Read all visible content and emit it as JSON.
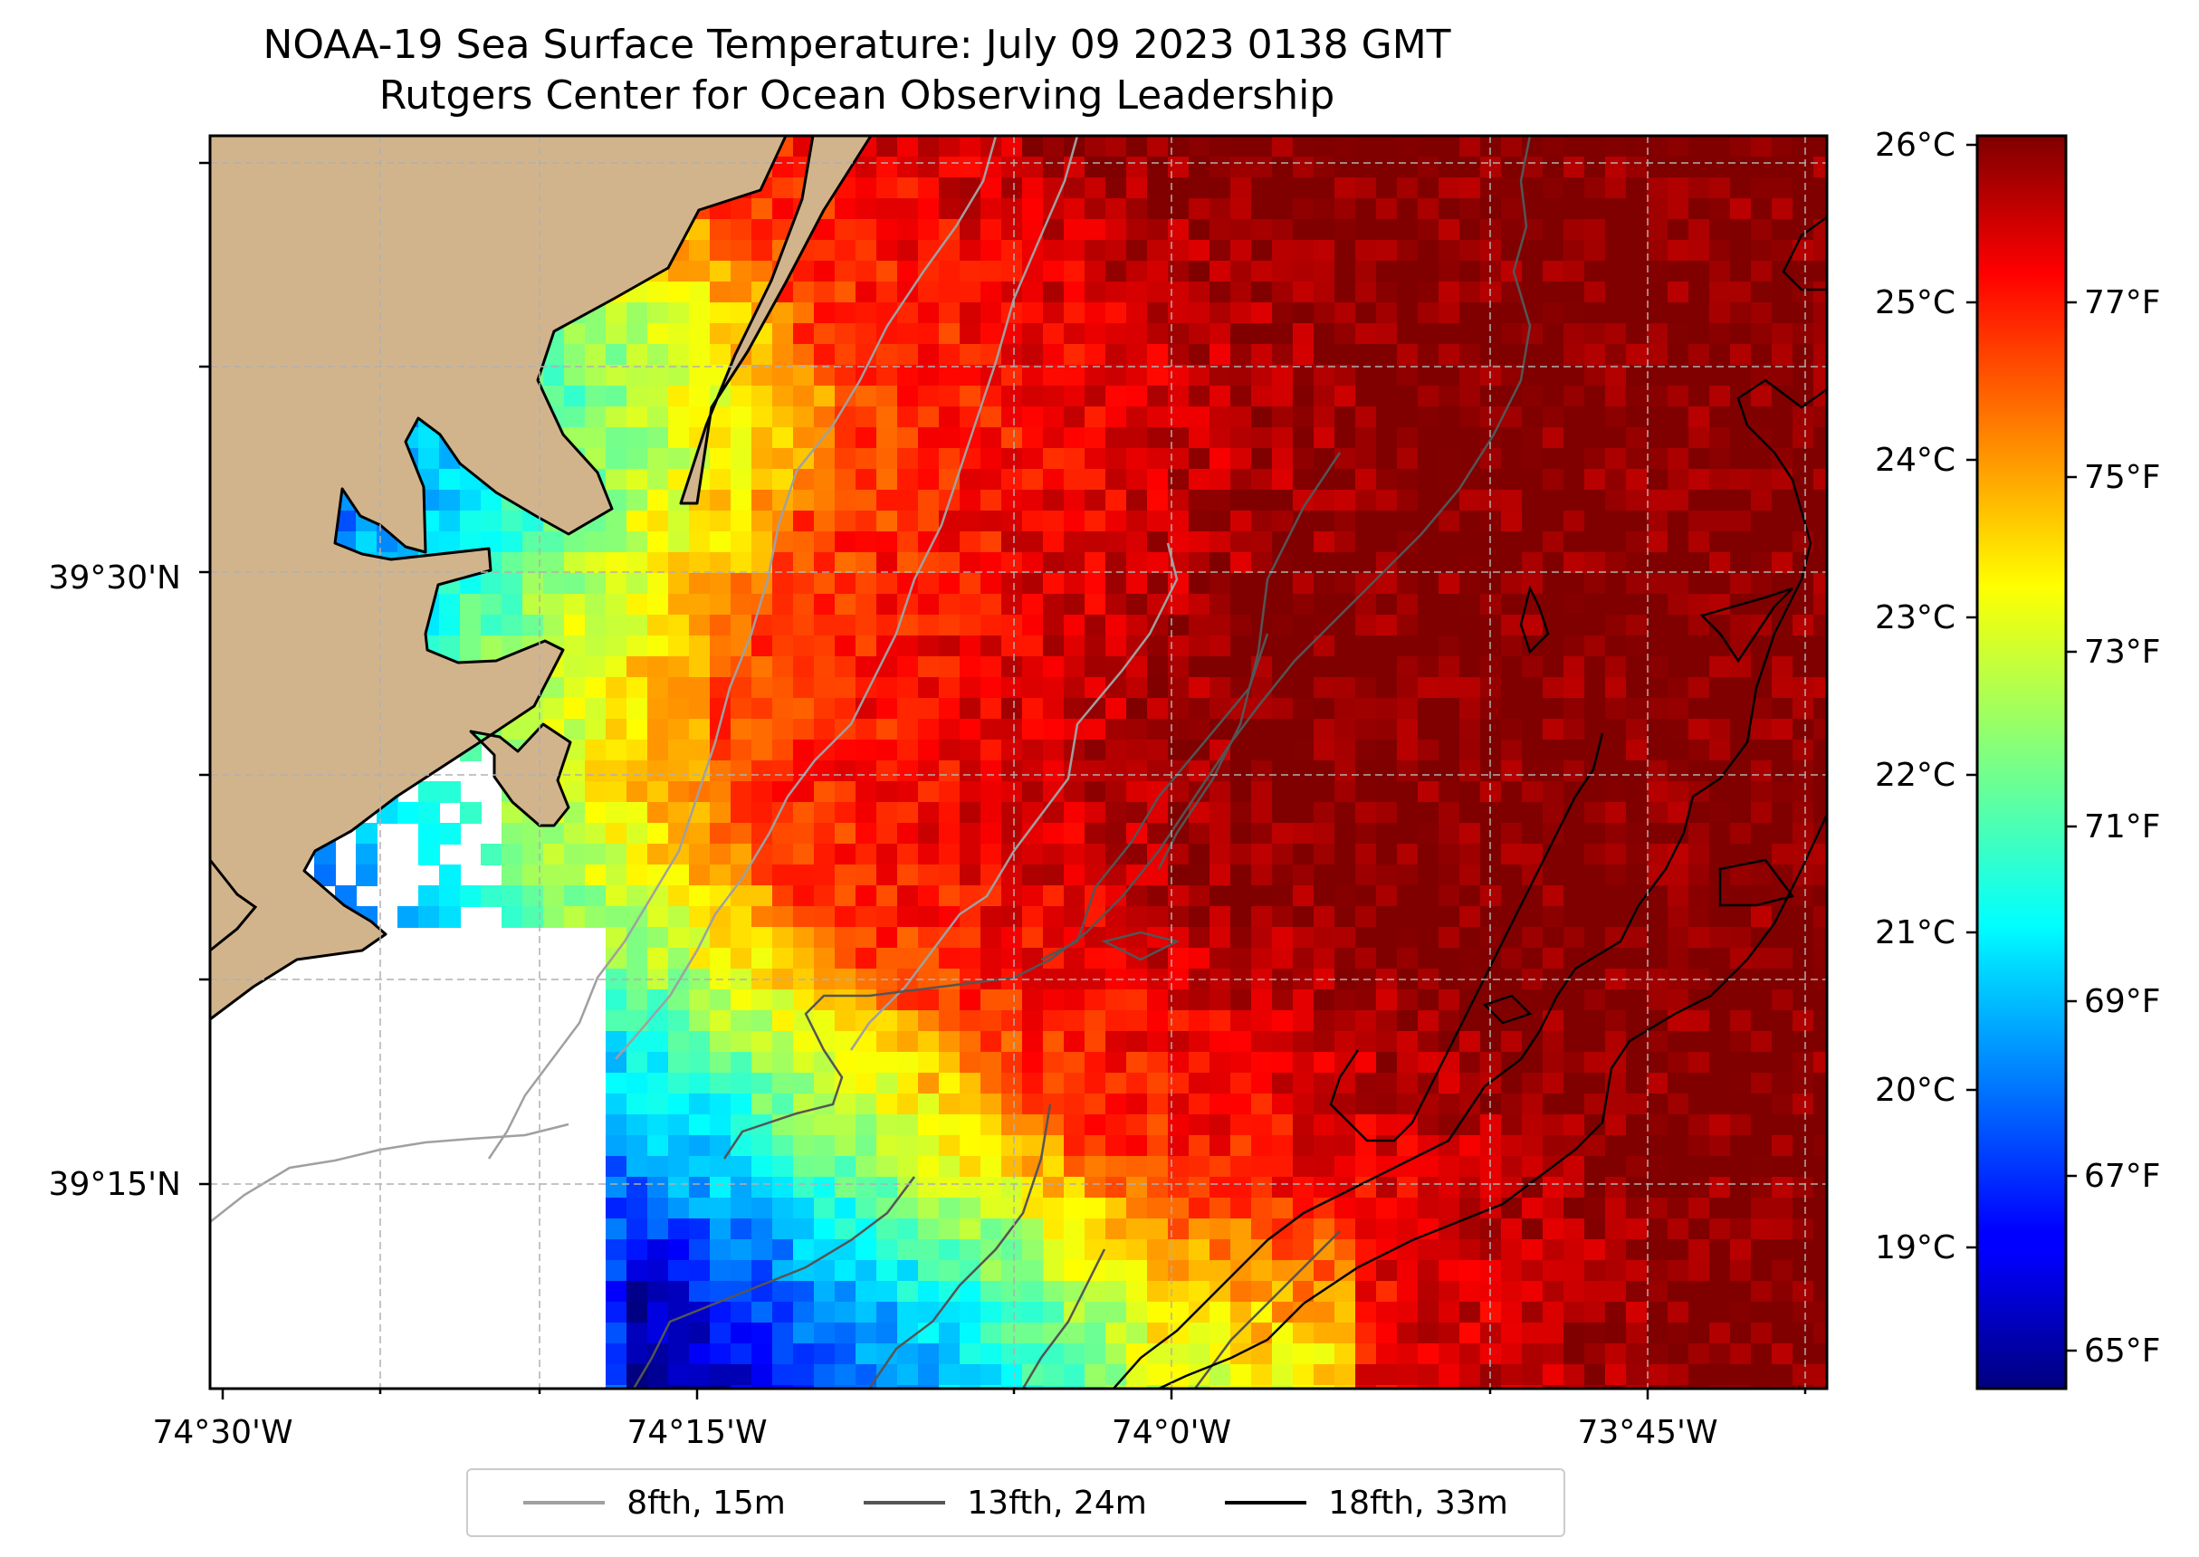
{
  "title": {
    "line1": "NOAA-19 Sea Surface Temperature: July 09 2023 0138 GMT",
    "line2": "Rutgers Center for Ocean Observing Leadership"
  },
  "map": {
    "lon_ticks": [
      "74°30'W",
      "74°15'W",
      "74°0'W",
      "73°45'W"
    ],
    "lat_ticks": [
      "39°30'N",
      "39°15'N"
    ],
    "land_color": "#d2b48c",
    "coast_color": "#000000"
  },
  "colorbar": {
    "colormap": "jet",
    "celsius_ticks": [
      "26°C",
      "25°C",
      "24°C",
      "23°C",
      "22°C",
      "21°C",
      "20°C",
      "19°C"
    ],
    "fahrenheit_ticks": [
      "77°F",
      "75°F",
      "73°F",
      "71°F",
      "69°F",
      "67°F",
      "65°F"
    ],
    "range_f": [
      64.4,
      78.8
    ]
  },
  "legend": {
    "items": [
      {
        "label": "8fth, 15m",
        "color": "#a0a0a0"
      },
      {
        "label": "13fth, 24m",
        "color": "#555555"
      },
      {
        "label": "18fth, 33m",
        "color": "#000000"
      }
    ]
  }
}
